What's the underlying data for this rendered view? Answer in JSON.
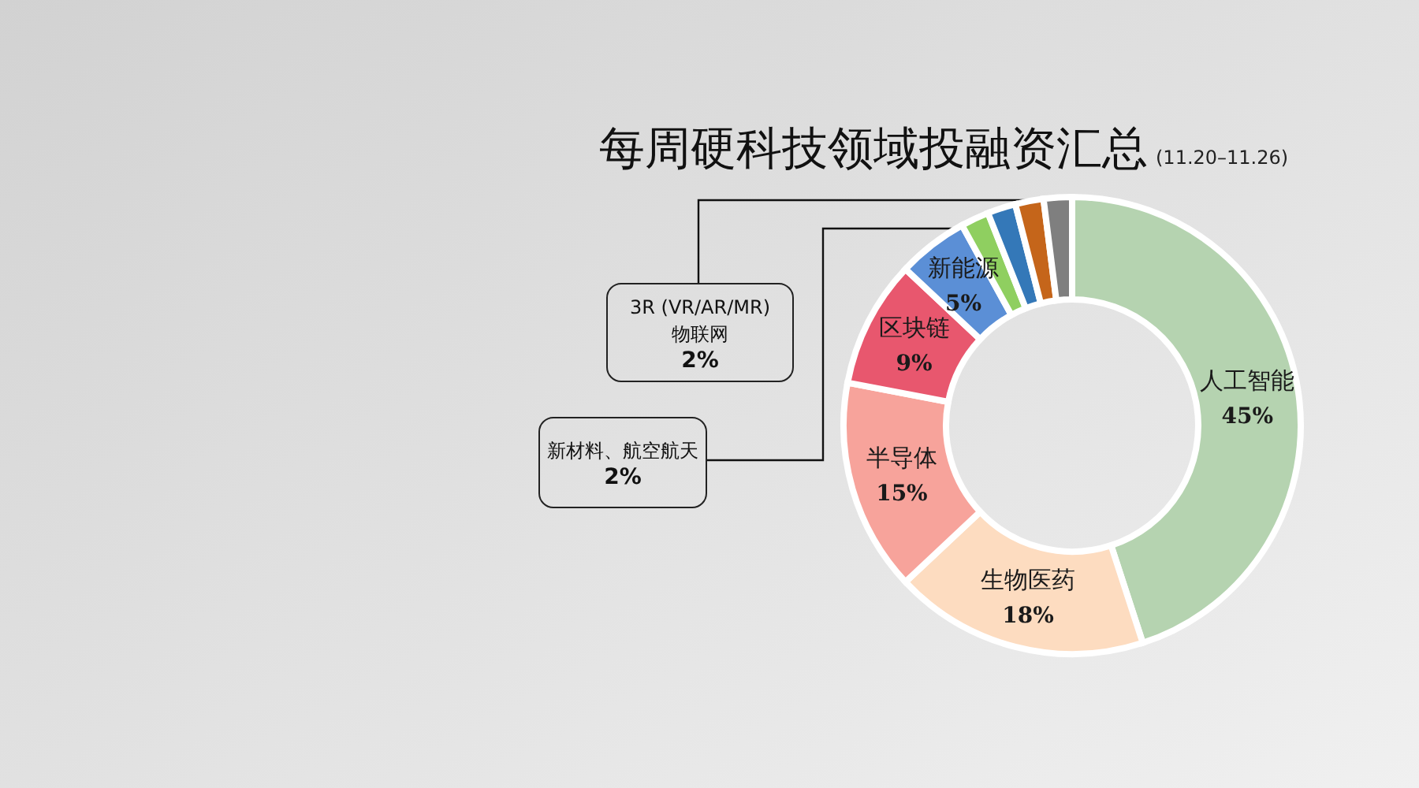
{
  "chart_data": {
    "type": "donut",
    "title": "每周硬科技领域投融资汇总",
    "subtitle": "(11.20–11.26)",
    "categories": [
      "人工智能",
      "生物医药",
      "半导体",
      "区块链",
      "新能源",
      null,
      null,
      null,
      null
    ],
    "values": [
      45,
      18,
      15,
      9,
      5,
      2,
      2,
      2,
      2
    ],
    "colors": [
      "#b5d3b0",
      "#fddcc0",
      "#f7a39b",
      "#e8576e",
      "#5b8fd6",
      "#8fcf60",
      "#3478b8",
      "#c5651a",
      "#7f7f7f"
    ],
    "value_labels": [
      "45%",
      "18%",
      "15%",
      "9%",
      "5%",
      null,
      null,
      null,
      null
    ],
    "annotations": [
      "3R (VR/AR/MR)\n物联网\n2%",
      "新材料、航空航天\n2%"
    ]
  }
}
